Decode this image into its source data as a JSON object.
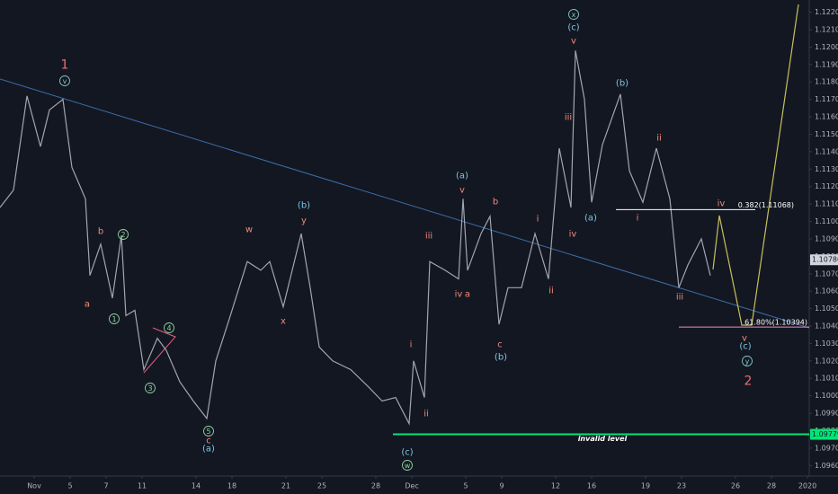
{
  "chart_data": {
    "type": "line",
    "color": "#a3a6af",
    "grid": false,
    "xlim": [
      -1.9,
      43.1
    ],
    "ylim": [
      1.0955,
      1.1227
    ],
    "x": [
      -1.9,
      -1.15,
      -0.4,
      0.35,
      0.85,
      1.6,
      2.1,
      2.85,
      3.1,
      3.7,
      4.35,
      4.85,
      5.1,
      5.6,
      6.1,
      6.85,
      7.35,
      8.1,
      8.85,
      9.6,
      10.1,
      10.85,
      11.85,
      12.6,
      13.1,
      13.85,
      14.85,
      15.35,
      15.85,
      16.6,
      17.6,
      18.6,
      19.35,
      20.1,
      20.85,
      21.1,
      21.7,
      22,
      22.85,
      23.6,
      23.85,
      24.1,
      24.85,
      25.35,
      25.85,
      26.35,
      27.1,
      27.85,
      28.6,
      29.2,
      29.85,
      30.1,
      30.6,
      31,
      31.6,
      32.6,
      33.1,
      33.85,
      34.6,
      35.35,
      35.85,
      36.35,
      37.1,
      37.6
    ],
    "values": [
      1.1108,
      1.1118,
      1.1172,
      1.1143,
      1.1164,
      1.117,
      1.1131,
      1.1113,
      1.1069,
      1.1087,
      1.1056,
      1.1092,
      1.1046,
      1.1049,
      1.1015,
      1.1033,
      1.1026,
      1.1008,
      1.0997,
      1.0987,
      1.102,
      1.1044,
      1.1077,
      1.1072,
      1.1077,
      1.1051,
      1.1093,
      1.1062,
      1.1028,
      1.102,
      1.1015,
      1.1005,
      1.0997,
      1.0999,
      1.0984,
      1.102,
      1.0999,
      1.1077,
      1.1072,
      1.1067,
      1.1113,
      1.1072,
      1.1093,
      1.1103,
      1.1041,
      1.1062,
      1.1062,
      1.1093,
      1.1067,
      1.1142,
      1.1108,
      1.1198,
      1.117,
      1.1111,
      1.1144,
      1.1173,
      1.1129,
      1.1111,
      1.1142,
      1.1113,
      1.1062,
      1.1075,
      1.109,
      1.1069
    ],
    "xticks": [
      {
        "value": 0,
        "label": "Nov"
      },
      {
        "value": 2,
        "label": "5"
      },
      {
        "value": 4,
        "label": "7"
      },
      {
        "value": 6,
        "label": "11"
      },
      {
        "value": 9,
        "label": "14"
      },
      {
        "value": 11,
        "label": "18"
      },
      {
        "value": 14,
        "label": "21"
      },
      {
        "value": 16,
        "label": "25"
      },
      {
        "value": 19,
        "label": "28"
      },
      {
        "value": 21,
        "label": "Dec"
      },
      {
        "value": 24,
        "label": "5"
      },
      {
        "value": 26,
        "label": "9"
      },
      {
        "value": 29,
        "label": "12"
      },
      {
        "value": 31,
        "label": "16"
      },
      {
        "value": 34,
        "label": "19"
      },
      {
        "value": 36,
        "label": "23"
      },
      {
        "value": 39,
        "label": "26"
      },
      {
        "value": 41,
        "label": "28"
      },
      {
        "value": 43,
        "label": "2020"
      }
    ],
    "yticks": [
      {
        "value": 1.096,
        "label": "1.09600"
      },
      {
        "value": 1.097,
        "label": "1.09700"
      },
      {
        "value": 1.098,
        "label": "1.09800"
      },
      {
        "value": 1.099,
        "label": "1.09900"
      },
      {
        "value": 1.1,
        "label": "1.10000"
      },
      {
        "value": 1.101,
        "label": "1.10100"
      },
      {
        "value": 1.102,
        "label": "1.10200"
      },
      {
        "value": 1.103,
        "label": "1.10300"
      },
      {
        "value": 1.104,
        "label": "1.10400"
      },
      {
        "value": 1.105,
        "label": "1.10500"
      },
      {
        "value": 1.106,
        "label": "1.10600"
      },
      {
        "value": 1.107,
        "label": "1.10700"
      },
      {
        "value": 1.108,
        "label": "1.10800"
      },
      {
        "value": 1.109,
        "label": "1.10900"
      },
      {
        "value": 1.11,
        "label": "1.11000"
      },
      {
        "value": 1.111,
        "label": "1.11100"
      },
      {
        "value": 1.112,
        "label": "1.11200"
      },
      {
        "value": 1.113,
        "label": "1.11300"
      },
      {
        "value": 1.114,
        "label": "1.11400"
      },
      {
        "value": 1.115,
        "label": "1.11500"
      },
      {
        "value": 1.116,
        "label": "1.11600"
      },
      {
        "value": 1.117,
        "label": "1.11700"
      },
      {
        "value": 1.118,
        "label": "1.11800"
      },
      {
        "value": 1.119,
        "label": "1.11900"
      },
      {
        "value": 1.12,
        "label": "1.12000"
      },
      {
        "value": 1.121,
        "label": "1.12100"
      },
      {
        "value": 1.122,
        "label": "1.12200"
      }
    ],
    "last_price": {
      "value": 1.1078,
      "label": "1.10780"
    },
    "levels": [
      {
        "label": "0.382(1.11068)",
        "value": 1.11068,
        "color": "#ffffff"
      },
      {
        "label": "61.80%(1.10394)",
        "value": 1.10394,
        "color": "#f48fb1"
      },
      {
        "label": "invalid level",
        "value": 1.09779,
        "value_label": "1.09779",
        "color": "#00e676"
      }
    ],
    "wave_labels": [
      {
        "text": "1",
        "color": "#ef6c6c"
      },
      {
        "text": "v",
        "color": "#80c4c4",
        "circled": true
      },
      {
        "text": "a",
        "color": "#ef8a7a"
      },
      {
        "text": "b",
        "color": "#ef8a7a"
      },
      {
        "text": "2",
        "color": "#8fd19e",
        "circled": true
      },
      {
        "text": "1",
        "color": "#8fd19e",
        "circled": true
      },
      {
        "text": "3",
        "color": "#8fd19e",
        "circled": true
      },
      {
        "text": "4",
        "color": "#8fd19e",
        "circled": true
      },
      {
        "text": "5",
        "color": "#8fd19e",
        "circled": true
      },
      {
        "text": "c",
        "color": "#ef8a7a"
      },
      {
        "text": "(a)",
        "color": "#80c4e0"
      },
      {
        "text": "w",
        "color": "#ef8a7a"
      },
      {
        "text": "(b)",
        "color": "#80c4e0"
      },
      {
        "text": "y",
        "color": "#ef8a7a"
      },
      {
        "text": "x",
        "color": "#ef8a7a"
      },
      {
        "text": "i",
        "color": "#ef8a7a"
      },
      {
        "text": "ii",
        "color": "#ef8a7a"
      },
      {
        "text": "iii",
        "color": "#ef8a7a"
      },
      {
        "text": "(c)",
        "color": "#80c4e0"
      },
      {
        "text": "w",
        "color": "#8fd19e",
        "circled": true
      },
      {
        "text": "(a)",
        "color": "#80c4e0"
      },
      {
        "text": "v",
        "color": "#ef8a7a"
      },
      {
        "text": "iv",
        "color": "#ef8a7a"
      },
      {
        "text": "a",
        "color": "#ef8a7a"
      },
      {
        "text": "b",
        "color": "#ef8a7a"
      },
      {
        "text": "c",
        "color": "#ef8a7a"
      },
      {
        "text": "(b)",
        "color": "#80c4e0"
      },
      {
        "text": "i",
        "color": "#ef8a7a"
      },
      {
        "text": "ii",
        "color": "#ef8a7a"
      },
      {
        "text": "x",
        "color": "#80c4c4",
        "circled": true
      },
      {
        "text": "(c)",
        "color": "#80c4e0"
      },
      {
        "text": "v",
        "color": "#ef8a7a"
      },
      {
        "text": "iii",
        "color": "#ef8a7a"
      },
      {
        "text": "iv",
        "color": "#ef8a7a"
      },
      {
        "text": "(a)",
        "color": "#80c4e0"
      },
      {
        "text": "(b)",
        "color": "#80c4e0"
      },
      {
        "text": "ii",
        "color": "#ef8a7a"
      },
      {
        "text": "i",
        "color": "#ef8a7a"
      },
      {
        "text": "iii",
        "color": "#ef8a7a"
      },
      {
        "text": "iv",
        "color": "#ef8a7a"
      },
      {
        "text": "v",
        "color": "#ef8a7a"
      },
      {
        "text": "(c)",
        "color": "#80c4e0"
      },
      {
        "text": "y",
        "color": "#80c4c4",
        "circled": true
      },
      {
        "text": "2",
        "color": "#ef6c6c"
      }
    ]
  }
}
